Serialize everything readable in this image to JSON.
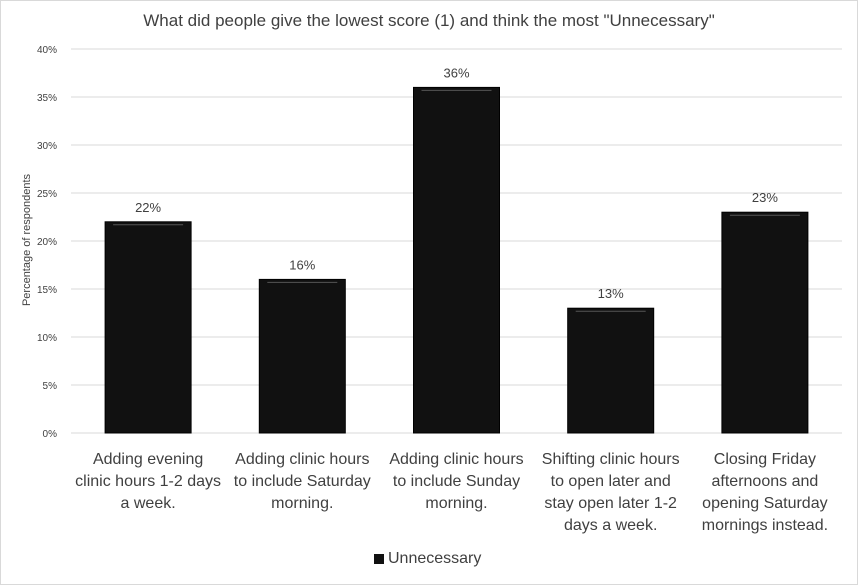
{
  "chart_data": {
    "type": "bar",
    "title": "What did people give the lowest score (1) and think the most \"Unnecessary\"",
    "ylabel": "Percentage of respondents",
    "xlabel": "",
    "categories": [
      "Adding evening clinic hours 1-2 days a week.",
      "Adding clinic hours to include Saturday morning.",
      "Adding clinic hours to include Sunday morning.",
      "Shifting clinic hours to open later and stay open later 1-2 days a week.",
      "Closing Friday afternoons and opening Saturday mornings instead."
    ],
    "category_lines": [
      [
        "Adding evening",
        "clinic hours 1-2 days",
        "a week."
      ],
      [
        "Adding clinic hours",
        "to include Saturday",
        "morning."
      ],
      [
        "Adding clinic hours",
        "to include Sunday",
        "morning."
      ],
      [
        "Shifting clinic hours",
        "to open later and",
        "stay open later 1-2",
        "days a week."
      ],
      [
        "Closing Friday",
        "afternoons and",
        "opening Saturday",
        "mornings instead."
      ]
    ],
    "series": [
      {
        "name": "Unnecessary",
        "values": [
          22,
          16,
          36,
          13,
          23
        ],
        "labels": [
          "22%",
          "16%",
          "36%",
          "13%",
          "23%"
        ]
      }
    ],
    "ylim": [
      0,
      40
    ],
    "yticks": [
      "0%",
      "5%",
      "10%",
      "15%",
      "20%",
      "25%",
      "30%",
      "35%",
      "40%"
    ],
    "grid": true,
    "legend": "bottom",
    "colors": {
      "bar": "#111111",
      "grid": "#d9d9d9",
      "text": "#404040"
    }
  }
}
